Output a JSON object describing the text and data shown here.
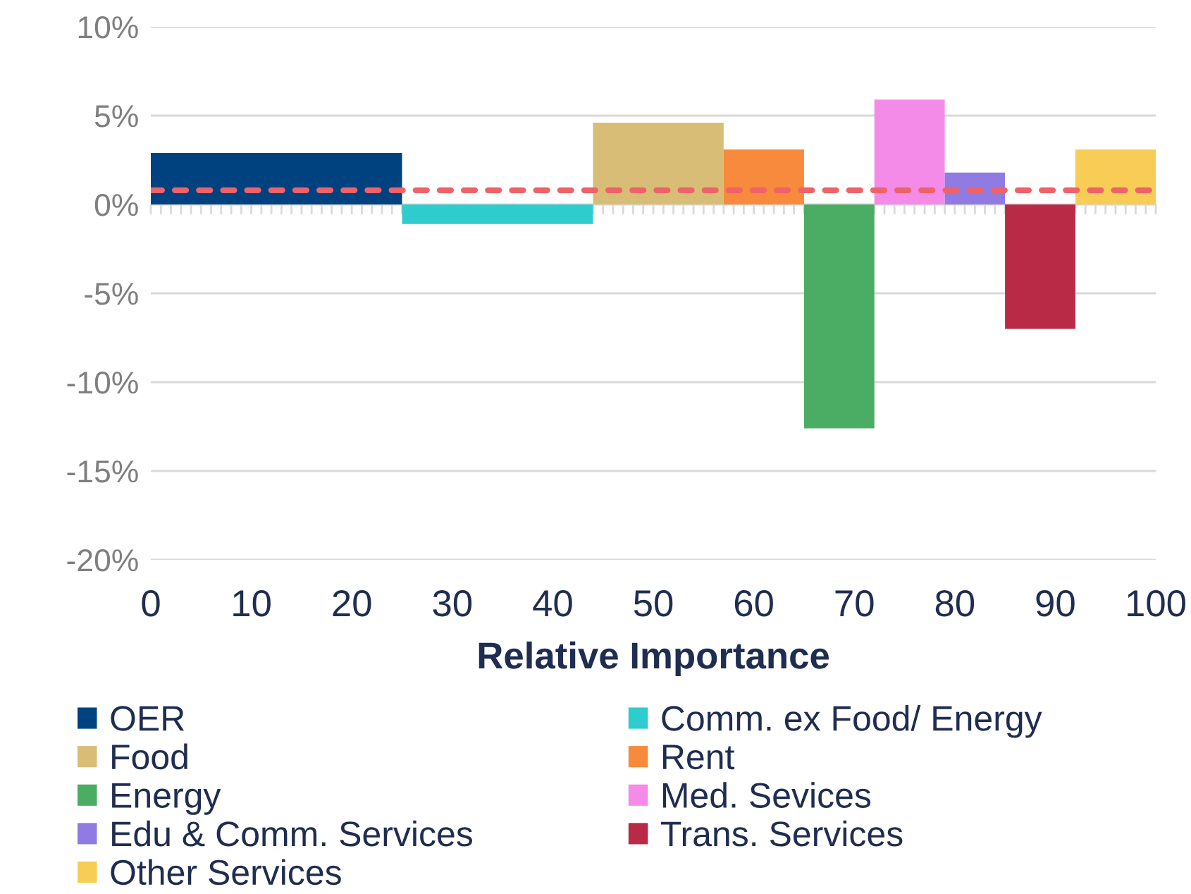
{
  "chart_data": {
    "type": "histogram",
    "xlabel": "Relative Importance",
    "bins": [
      0,
      25,
      44,
      57,
      65,
      72,
      79,
      85,
      92,
      100
    ],
    "series": [
      {
        "name": "OER",
        "color": "#00427f",
        "values": [
          2.9,
          null,
          null,
          null,
          null,
          null,
          null,
          null,
          null
        ]
      },
      {
        "name": "Comm. ex Food/ Energy",
        "color": "#2ecccc",
        "values": [
          null,
          -1.1,
          null,
          null,
          null,
          null,
          null,
          null,
          null
        ]
      },
      {
        "name": "Food",
        "color": "#d8bd76",
        "values": [
          null,
          null,
          4.6,
          null,
          null,
          null,
          null,
          null,
          null
        ]
      },
      {
        "name": "Rent",
        "color": "#f78a3c",
        "values": [
          null,
          null,
          null,
          3.1,
          null,
          null,
          null,
          null,
          null
        ]
      },
      {
        "name": "Energy",
        "color": "#4aad63",
        "values": [
          null,
          null,
          null,
          null,
          -12.6,
          null,
          null,
          null,
          null
        ]
      },
      {
        "name": "Med. Sevices",
        "color": "#f58be8",
        "values": [
          null,
          null,
          null,
          null,
          null,
          5.9,
          null,
          null,
          null
        ]
      },
      {
        "name": "Edu & Comm. Services",
        "color": "#907be3",
        "values": [
          null,
          null,
          null,
          null,
          null,
          null,
          1.8,
          null,
          null
        ]
      },
      {
        "name": "Trans. Services",
        "color": "#b82a46",
        "values": [
          null,
          null,
          null,
          null,
          null,
          null,
          null,
          -7.0,
          null
        ]
      },
      {
        "name": "Other Services",
        "color": "#f8cd55",
        "values": [
          null,
          null,
          null,
          null,
          null,
          null,
          null,
          null,
          3.1
        ]
      }
    ],
    "xlim": [
      0,
      100
    ],
    "xticks": [
      0,
      10,
      20,
      30,
      40,
      50,
      60,
      70,
      80,
      90,
      100
    ],
    "ylim": [
      -20,
      10
    ],
    "yticks": [
      {
        "value": -20,
        "label": "-20%"
      },
      {
        "value": -15,
        "label": "-15%"
      },
      {
        "value": -10,
        "label": "-10%"
      },
      {
        "value": -5,
        "label": "-5%"
      },
      {
        "value": 0,
        "label": "0%"
      },
      {
        "value": 5,
        "label": "5%"
      },
      {
        "value": 10,
        "label": "10%"
      }
    ],
    "grid": "y",
    "legend": "bottom",
    "ref_lines": [
      {
        "axis": "y",
        "value": 0.8,
        "color": "#ef6268",
        "line_style": "dashed"
      }
    ]
  }
}
